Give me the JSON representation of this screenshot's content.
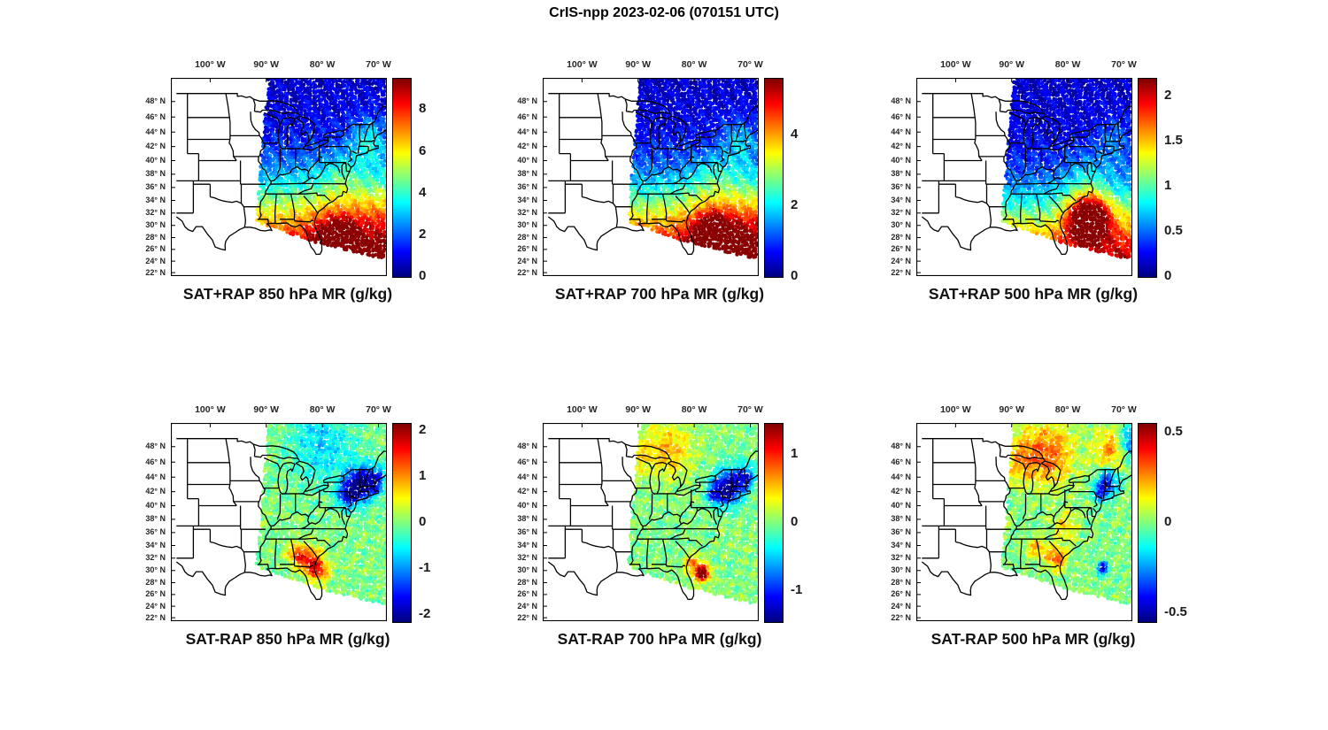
{
  "figure": {
    "title": "CrIS-npp 2023-02-06 (070151 UTC)",
    "satellite": "CrIS-npp",
    "date": "2023-02-06",
    "time_utc": "070151"
  },
  "axes": {
    "lon_ticks": [
      {
        "label": "100° W",
        "lon": -100
      },
      {
        "label": "90° W",
        "lon": -90
      },
      {
        "label": "80° W",
        "lon": -80
      },
      {
        "label": "70° W",
        "lon": -70
      }
    ],
    "lat_ticks": [
      {
        "label": "48° N",
        "lat": 48
      },
      {
        "label": "46° N",
        "lat": 46
      },
      {
        "label": "44° N",
        "lat": 44
      },
      {
        "label": "42° N",
        "lat": 42
      },
      {
        "label": "40° N",
        "lat": 40
      },
      {
        "label": "38° N",
        "lat": 38
      },
      {
        "label": "36° N",
        "lat": 36
      },
      {
        "label": "34° N",
        "lat": 34
      },
      {
        "label": "32° N",
        "lat": 32
      },
      {
        "label": "30° N",
        "lat": 30
      },
      {
        "label": "28° N",
        "lat": 28
      },
      {
        "label": "26° N",
        "lat": 26
      },
      {
        "label": "24° N",
        "lat": 24
      },
      {
        "label": "22° N",
        "lat": 22
      }
    ],
    "lon_range": [
      -107,
      -68.5
    ],
    "lat_range": [
      21.4,
      50.9
    ],
    "projection": "mercator"
  },
  "chart_data": {
    "type": "heatmap",
    "colormap": "jet",
    "units": "g/kg",
    "quantity": "mixing ratio",
    "coverage": "satellite swath over the eastern United States",
    "panels": [
      {
        "caption": "SAT+RAP 850 hPa MR (g/kg)",
        "kind": "sum",
        "level_hPa": 850,
        "colorbar": {
          "min": 0,
          "max": 9.5,
          "ticks": [
            {
              "value": 0,
              "label": "0"
            },
            {
              "value": 2,
              "label": "2"
            },
            {
              "value": 4,
              "label": "4"
            },
            {
              "value": 6,
              "label": "6"
            },
            {
              "value": 8,
              "label": "8"
            }
          ]
        }
      },
      {
        "caption": "SAT+RAP 700 hPa MR (g/kg)",
        "kind": "sum",
        "level_hPa": 700,
        "colorbar": {
          "min": 0,
          "max": 5.6,
          "ticks": [
            {
              "value": 0,
              "label": "0"
            },
            {
              "value": 2,
              "label": "2"
            },
            {
              "value": 4,
              "label": "4"
            }
          ]
        }
      },
      {
        "caption": "SAT+RAP 500 hPa MR (g/kg)",
        "kind": "sum",
        "level_hPa": 500,
        "colorbar": {
          "min": 0,
          "max": 2.2,
          "ticks": [
            {
              "value": 0,
              "label": "0"
            },
            {
              "value": 0.5,
              "label": "0.5"
            },
            {
              "value": 1,
              "label": "1"
            },
            {
              "value": 1.5,
              "label": "1.5"
            },
            {
              "value": 2,
              "label": "2"
            }
          ]
        }
      },
      {
        "caption": "SAT-RAP 850 hPa MR (g/kg)",
        "kind": "difference",
        "level_hPa": 850,
        "colorbar": {
          "min": -2.15,
          "max": 2.15,
          "ticks": [
            {
              "value": -2,
              "label": "-2"
            },
            {
              "value": -1,
              "label": "-1"
            },
            {
              "value": 0,
              "label": "0"
            },
            {
              "value": 1,
              "label": "1"
            },
            {
              "value": 2,
              "label": "2"
            }
          ]
        }
      },
      {
        "caption": "SAT-RAP 700 hPa MR (g/kg)",
        "kind": "difference",
        "level_hPa": 700,
        "colorbar": {
          "min": -1.45,
          "max": 1.45,
          "ticks": [
            {
              "value": -1,
              "label": "-1"
            },
            {
              "value": 0,
              "label": "0"
            },
            {
              "value": 1,
              "label": "1"
            }
          ]
        }
      },
      {
        "caption": "SAT-RAP 500 hPa MR (g/kg)",
        "kind": "difference",
        "level_hPa": 500,
        "colorbar": {
          "min": -0.55,
          "max": 0.55,
          "ticks": [
            {
              "value": -0.5,
              "label": "-0.5"
            },
            {
              "value": 0,
              "label": "0"
            },
            {
              "value": 0.5,
              "label": "0.5"
            }
          ]
        }
      }
    ]
  }
}
